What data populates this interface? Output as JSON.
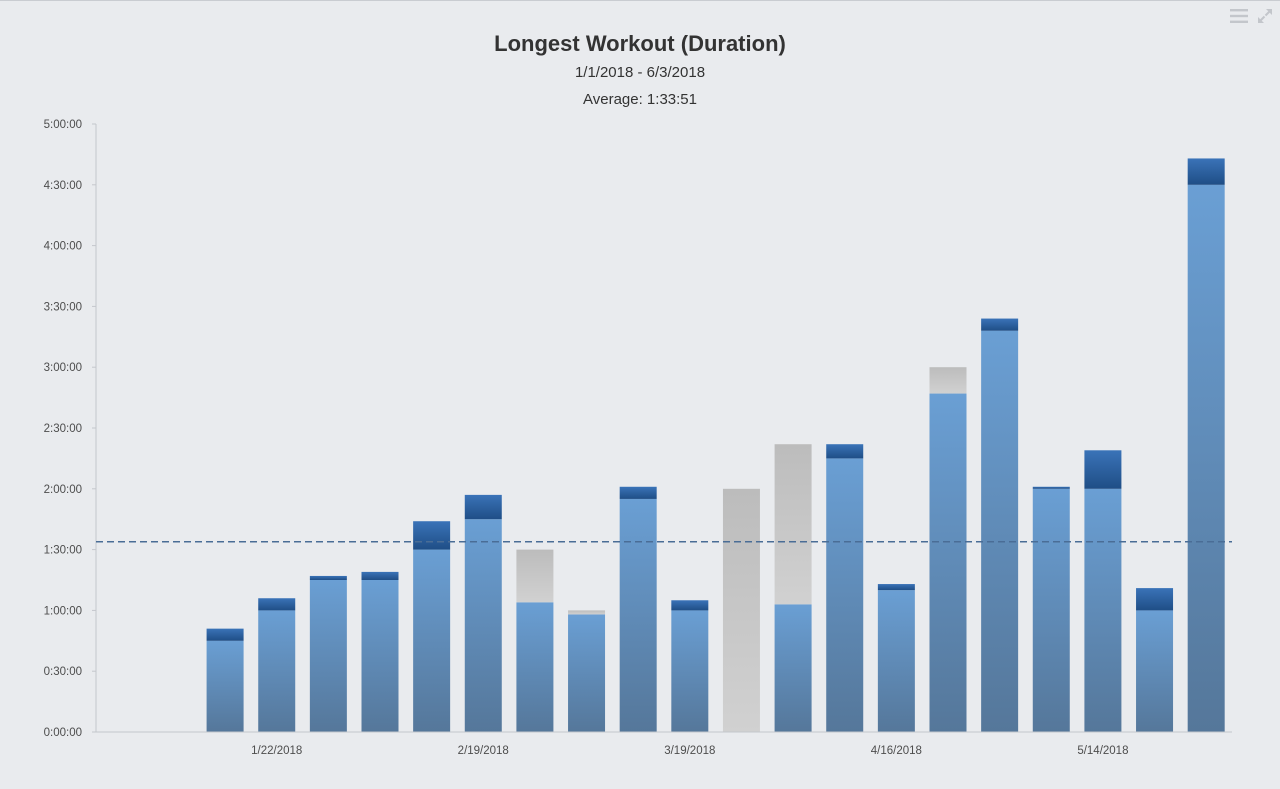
{
  "chart_data": {
    "type": "bar",
    "stacked": true,
    "title": "Longest Workout (Duration)",
    "subtitle": "1/1/2018 - 6/3/2018",
    "average_label": "Average: 1:33:51",
    "average_minutes": 93.85,
    "yticks": [
      "0:00:00",
      "0:30:00",
      "1:00:00",
      "1:30:00",
      "2:00:00",
      "2:30:00",
      "3:00:00",
      "3:30:00",
      "4:00:00",
      "4:30:00",
      "5:00:00"
    ],
    "ylim_minutes": [
      0,
      300
    ],
    "xticks": [
      {
        "label": "1/22/2018",
        "bar_index": 1
      },
      {
        "label": "2/19/2018",
        "bar_index": 5
      },
      {
        "label": "3/19/2018",
        "bar_index": 9
      },
      {
        "label": "4/16/2018",
        "bar_index": 13
      },
      {
        "label": "5/14/2018",
        "bar_index": 17
      }
    ],
    "num_slots": 22,
    "first_bar_slot": 2,
    "series_minutes": [
      {
        "base": 45,
        "top": 6,
        "top_kind": "blue"
      },
      {
        "base": 60,
        "top": 6,
        "top_kind": "blue"
      },
      {
        "base": 75,
        "top": 2,
        "top_kind": "blue"
      },
      {
        "base": 75,
        "top": 4,
        "top_kind": "blue"
      },
      {
        "base": 90,
        "top": 14,
        "top_kind": "blue"
      },
      {
        "base": 105,
        "top": 12,
        "top_kind": "blue"
      },
      {
        "base": 64,
        "top": 26,
        "top_kind": "gray"
      },
      {
        "base": 58,
        "top": 2,
        "top_kind": "gray"
      },
      {
        "base": 115,
        "top": 6,
        "top_kind": "blue"
      },
      {
        "base": 60,
        "top": 5,
        "top_kind": "blue"
      },
      {
        "base": 0,
        "top": 120,
        "top_kind": "gray"
      },
      {
        "base": 63,
        "top": 79,
        "top_kind": "gray"
      },
      {
        "base": 135,
        "top": 7,
        "top_kind": "blue"
      },
      {
        "base": 70,
        "top": 3,
        "top_kind": "blue"
      },
      {
        "base": 167,
        "top": 13,
        "top_kind": "gray"
      },
      {
        "base": 198,
        "top": 6,
        "top_kind": "blue"
      },
      {
        "base": 120,
        "top": 1,
        "top_kind": "blue"
      },
      {
        "base": 120,
        "top": 19,
        "top_kind": "blue"
      },
      {
        "base": 60,
        "top": 11,
        "top_kind": "blue"
      },
      {
        "base": 270,
        "top": 13,
        "top_kind": "blue"
      }
    ],
    "colors": {
      "base_top": "#6a9fd4",
      "base_bottom": "#55779a",
      "cap_top": "#2f66a8",
      "cap_bottom": "#1f4e86",
      "gray_top": "#bdbdbd",
      "gray_bottom": "#d0d0d0",
      "avg_line": "#4a6d96",
      "axis": "#c4c7cc"
    }
  }
}
